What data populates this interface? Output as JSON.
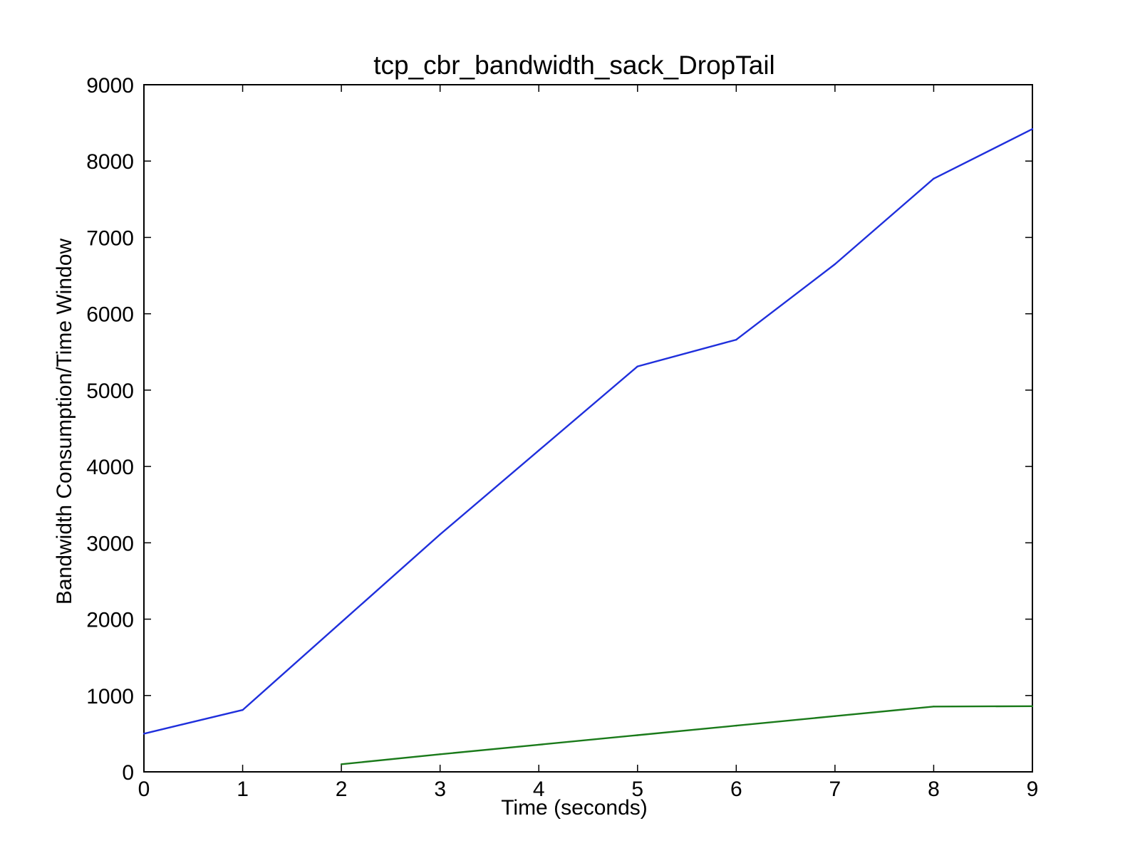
{
  "chart_data": {
    "type": "line",
    "title": "tcp_cbr_bandwidth_sack_DropTail",
    "xlabel": "Time (seconds)",
    "ylabel": "Bandwidth Consumption/Time Window",
    "xlim": [
      0,
      9
    ],
    "ylim": [
      0,
      9000
    ],
    "xticks": [
      0,
      1,
      2,
      3,
      4,
      5,
      6,
      7,
      8,
      9
    ],
    "yticks": [
      0,
      1000,
      2000,
      3000,
      4000,
      5000,
      6000,
      7000,
      8000,
      9000
    ],
    "grid": false,
    "legend": null,
    "series": [
      {
        "color": "#1f2fdc",
        "x": [
          0,
          1,
          2,
          3,
          4,
          5,
          6,
          7,
          8,
          9
        ],
        "y": [
          500,
          810,
          1960,
          3110,
          4210,
          5310,
          5660,
          6650,
          7770,
          8420
        ]
      },
      {
        "color": "#1a7a1a",
        "x": [
          2,
          3,
          4,
          5,
          6,
          7,
          8,
          9
        ],
        "y": [
          100,
          230,
          355,
          480,
          605,
          730,
          855,
          860
        ]
      }
    ]
  }
}
